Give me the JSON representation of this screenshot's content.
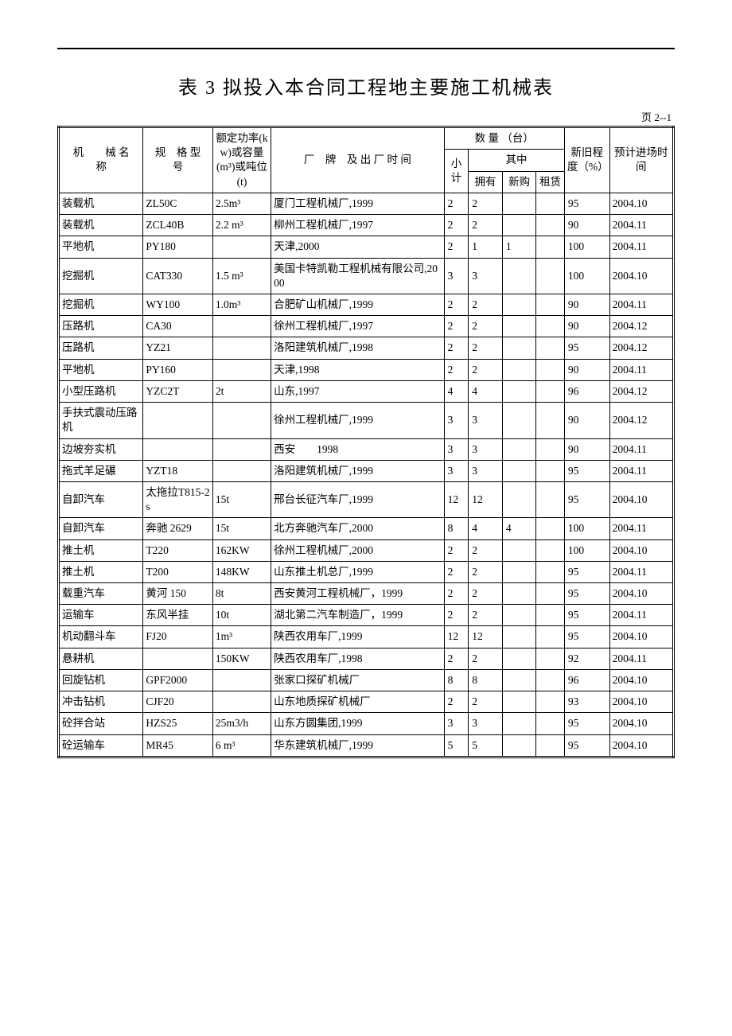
{
  "title": "表 3   拟投入本合同工程地主要施工机械表",
  "page_label": "页 2--1",
  "headers": {
    "name": "机　　械\n名　　称",
    "model": "规　格\n型　号",
    "power": "额定功率(kw)或容量(m³)或吨位(t)",
    "brand": "厂　牌　及\n出 厂 时 间",
    "qty_group": "数 量 （台）",
    "subtotal": "小计",
    "of_which": "其中",
    "own": "拥有",
    "buy": "新购",
    "rent": "租赁",
    "degree": "新旧程度（%）",
    "time": "预计进场时间"
  },
  "rows": [
    {
      "name": "装载机",
      "model": "ZL50C",
      "power": "2.5m³",
      "brand": "厦门工程机械厂,1999",
      "sub": "2",
      "own": "2",
      "buy": "",
      "rent": "",
      "deg": "95",
      "time": "2004.10"
    },
    {
      "name": "装载机",
      "model": "ZCL40B",
      "power": "2.2 m³",
      "brand": "柳州工程机械厂,1997",
      "sub": "2",
      "own": "2",
      "buy": "",
      "rent": "",
      "deg": "90",
      "time": "2004.11"
    },
    {
      "name": "平地机",
      "model": "PY180",
      "power": "",
      "brand": "天津,2000",
      "sub": "2",
      "own": "1",
      "buy": "1",
      "rent": "",
      "deg": "100",
      "time": "2004.11"
    },
    {
      "name": "挖掘机",
      "model": "CAT330",
      "power": "1.5 m³",
      "brand": "美国卡特凯勒工程机械有限公司,2000",
      "sub": "3",
      "own": "3",
      "buy": "",
      "rent": "",
      "deg": "100",
      "time": "2004.10"
    },
    {
      "name": "挖掘机",
      "model": "WY100",
      "power": "1.0m³",
      "brand": "合肥矿山机械厂,1999",
      "sub": "2",
      "own": "2",
      "buy": "",
      "rent": "",
      "deg": "90",
      "time": "2004.11"
    },
    {
      "name": "压路机",
      "model": "CA30",
      "power": "",
      "brand": "徐州工程机械厂,1997",
      "sub": "2",
      "own": "2",
      "buy": "",
      "rent": "",
      "deg": "90",
      "time": "2004.12"
    },
    {
      "name": "压路机",
      "model": "YZ21",
      "power": "",
      "brand": "洛阳建筑机械厂,1998",
      "sub": "2",
      "own": "2",
      "buy": "",
      "rent": "",
      "deg": "95",
      "time": "2004.12"
    },
    {
      "name": "平地机",
      "model": "PY160",
      "power": "",
      "brand": "天津,1998",
      "sub": "2",
      "own": "2",
      "buy": "",
      "rent": "",
      "deg": "90",
      "time": "2004.11"
    },
    {
      "name": "小型压路机",
      "model": "YZC2T",
      "power": "2t",
      "brand": "山东,1997",
      "sub": "4",
      "own": "4",
      "buy": "",
      "rent": "",
      "deg": "96",
      "time": "2004.12"
    },
    {
      "name": "手扶式震动压路机",
      "model": "",
      "power": "",
      "brand": "徐州工程机械厂,1999",
      "sub": "3",
      "own": "3",
      "buy": "",
      "rent": "",
      "deg": "90",
      "time": "2004.12"
    },
    {
      "name": "边坡夯实机",
      "model": "",
      "power": "",
      "brand": "西安　　1998",
      "sub": "3",
      "own": "3",
      "buy": "",
      "rent": "",
      "deg": "90",
      "time": "2004.11"
    },
    {
      "name": "拖式羊足碾",
      "model": "YZT18",
      "power": "",
      "brand": "洛阳建筑机械厂,1999",
      "sub": "3",
      "own": "3",
      "buy": "",
      "rent": "",
      "deg": "95",
      "time": "2004.11"
    },
    {
      "name": "自卸汽车",
      "model": "太拖拉T815-2s",
      "power": "15t",
      "brand": "邢台长征汽车厂,1999",
      "sub": "12",
      "own": "12",
      "buy": "",
      "rent": "",
      "deg": "95",
      "time": "2004.10"
    },
    {
      "name": "自卸汽车",
      "model": "奔驰 2629",
      "power": "15t",
      "brand": "北方奔驰汽车厂,2000",
      "sub": "8",
      "own": "4",
      "buy": "4",
      "rent": "",
      "deg": "100",
      "time": "2004.11"
    },
    {
      "name": "推土机",
      "model": "T220",
      "power": "162KW",
      "brand": "徐州工程机械厂,2000",
      "sub": "2",
      "own": "2",
      "buy": "",
      "rent": "",
      "deg": "100",
      "time": "2004.10"
    },
    {
      "name": "推土机",
      "model": "T200",
      "power": "148KW",
      "brand": "山东推土机总厂,1999",
      "sub": "2",
      "own": "2",
      "buy": "",
      "rent": "",
      "deg": "95",
      "time": "2004.11"
    },
    {
      "name": "载重汽车",
      "model": "黄河 150",
      "power": "8t",
      "brand": "西安黄河工程机械厂，1999",
      "sub": "2",
      "own": "2",
      "buy": "",
      "rent": "",
      "deg": "95",
      "time": "2004.10"
    },
    {
      "name": "运输车",
      "model": "东风半挂",
      "power": "10t",
      "brand": "湖北第二汽车制造厂，1999",
      "sub": "2",
      "own": "2",
      "buy": "",
      "rent": "",
      "deg": "95",
      "time": "2004.11"
    },
    {
      "name": "机动翻斗车",
      "model": "FJ20",
      "power": "1m³",
      "brand": "陕西农用车厂,1999",
      "sub": "12",
      "own": "12",
      "buy": "",
      "rent": "",
      "deg": "95",
      "time": "2004.10"
    },
    {
      "name": "悬耕机",
      "model": "",
      "power": "150KW",
      "brand": "陕西农用车厂,1998",
      "sub": "2",
      "own": "2",
      "buy": "",
      "rent": "",
      "deg": "92",
      "time": "2004.11"
    },
    {
      "name": "回旋钻机",
      "model": "GPF2000",
      "power": "",
      "brand": "张家口探矿机械厂",
      "sub": "8",
      "own": "8",
      "buy": "",
      "rent": "",
      "deg": "96",
      "time": "2004.10"
    },
    {
      "name": "冲击钻机",
      "model": "CJF20",
      "power": "",
      "brand": "山东地质探矿机械厂",
      "sub": "2",
      "own": "2",
      "buy": "",
      "rent": "",
      "deg": "93",
      "time": "2004.10"
    },
    {
      "name": "砼拌合站",
      "model": "HZS25",
      "power": "25m3/h",
      "brand": "山东方圆集团,1999",
      "sub": "3",
      "own": "3",
      "buy": "",
      "rent": "",
      "deg": "95",
      "time": "2004.10"
    },
    {
      "name": "砼运输车",
      "model": "MR45",
      "power": "6 m³",
      "brand": "华东建筑机械厂,1999",
      "sub": "5",
      "own": "5",
      "buy": "",
      "rent": "",
      "deg": "95",
      "time": "2004.10"
    }
  ]
}
